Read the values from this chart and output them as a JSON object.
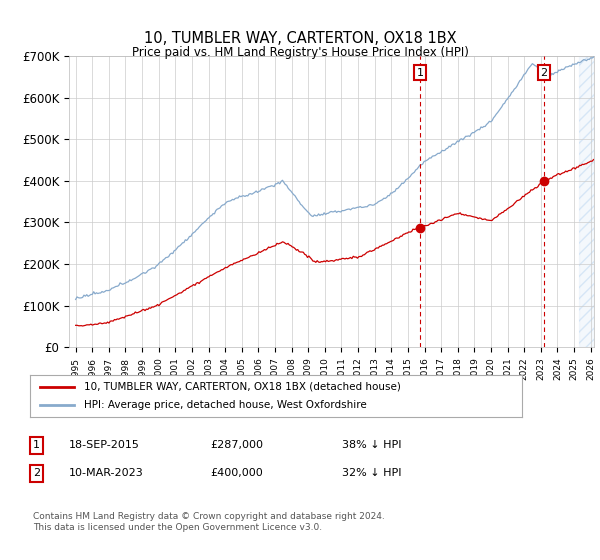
{
  "title": "10, TUMBLER WAY, CARTERTON, OX18 1BX",
  "subtitle": "Price paid vs. HM Land Registry's House Price Index (HPI)",
  "ylim": [
    0,
    700000
  ],
  "yticks": [
    0,
    100000,
    200000,
    300000,
    400000,
    500000,
    600000,
    700000
  ],
  "ytick_labels": [
    "£0",
    "£100K",
    "£200K",
    "£300K",
    "£400K",
    "£500K",
    "£600K",
    "£700K"
  ],
  "xlim_start": 1994.6,
  "xlim_end": 2026.2,
  "sale1_x": 2015.72,
  "sale1_y": 287000,
  "sale1_label": "1",
  "sale2_x": 2023.19,
  "sale2_y": 400000,
  "sale2_label": "2",
  "red_color": "#cc0000",
  "blue_color": "#88aacc",
  "shade_start": 2025.3,
  "legend_line1": "10, TUMBLER WAY, CARTERTON, OX18 1BX (detached house)",
  "legend_line2": "HPI: Average price, detached house, West Oxfordshire",
  "note1_num": "1",
  "note1_date": "18-SEP-2015",
  "note1_price": "£287,000",
  "note1_hpi": "38% ↓ HPI",
  "note2_num": "2",
  "note2_date": "10-MAR-2023",
  "note2_price": "£400,000",
  "note2_hpi": "32% ↓ HPI",
  "footer": "Contains HM Land Registry data © Crown copyright and database right 2024.\nThis data is licensed under the Open Government Licence v3.0.",
  "background_color": "#ffffff",
  "grid_color": "#cccccc"
}
